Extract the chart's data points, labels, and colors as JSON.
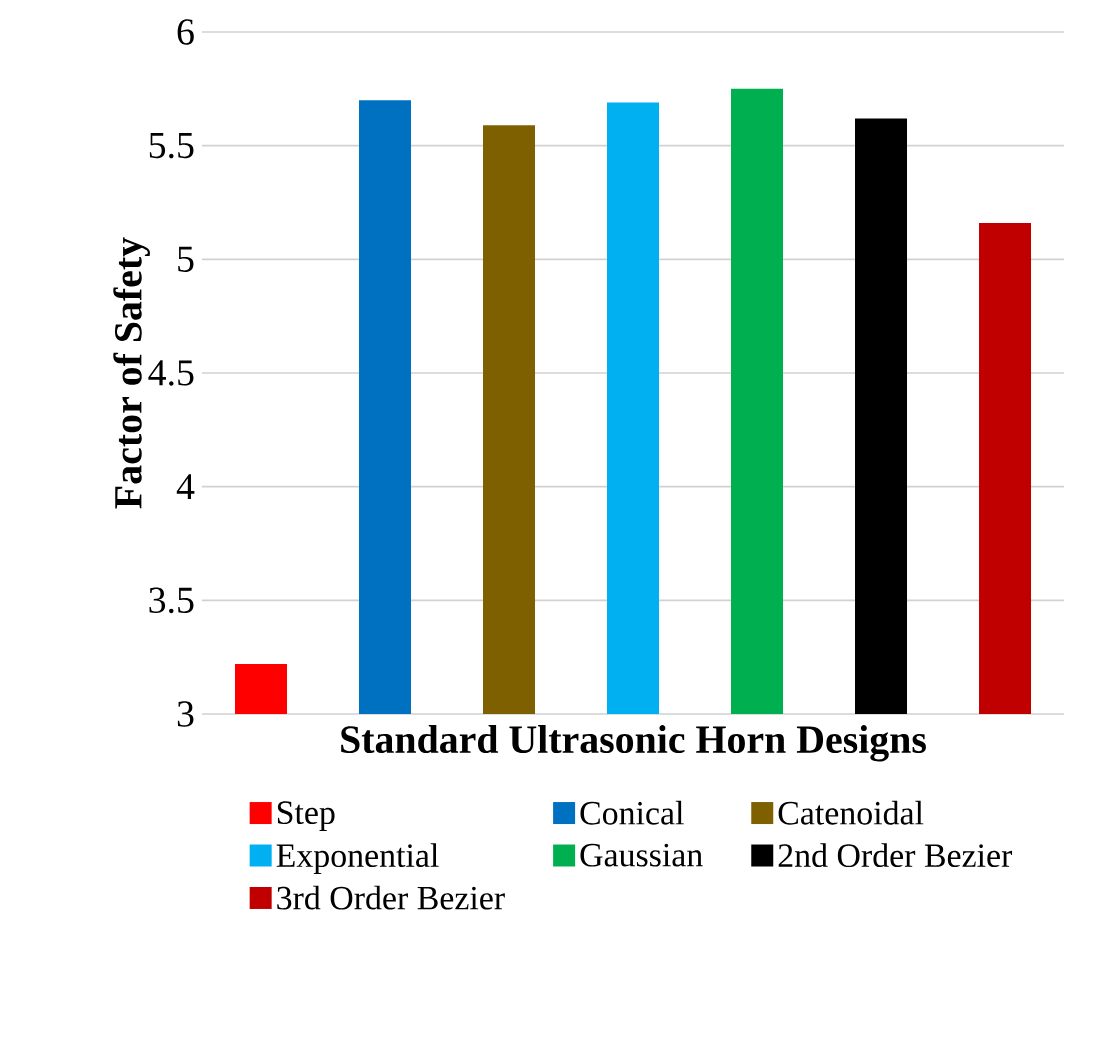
{
  "chart_data": {
    "type": "bar",
    "xlabel": "Standard Ultrasonic Horn Designs",
    "ylabel": "Factor of Safety",
    "categories": [
      null
    ],
    "series": [
      {
        "name": "Step",
        "color": "#ff0000",
        "values": [
          3.22
        ]
      },
      {
        "name": "Conical",
        "color": "#0070c0",
        "values": [
          5.7
        ]
      },
      {
        "name": "Catenoidal",
        "color": "#7f6000",
        "values": [
          5.59
        ]
      },
      {
        "name": "Exponential",
        "color": "#00b0f0",
        "values": [
          5.69
        ]
      },
      {
        "name": "Gaussian",
        "color": "#00b050",
        "values": [
          5.75
        ]
      },
      {
        "name": "2nd Order Bezier",
        "color": "#000000",
        "values": [
          5.62
        ]
      },
      {
        "name": "3rd Order Bezier",
        "color": "#c00000",
        "values": [
          5.16
        ]
      }
    ],
    "ylim": [
      3,
      6
    ],
    "yticks": [
      3,
      3.5,
      4,
      4.5,
      5,
      5.5,
      6
    ],
    "grid": "y",
    "legend": "bottom"
  }
}
